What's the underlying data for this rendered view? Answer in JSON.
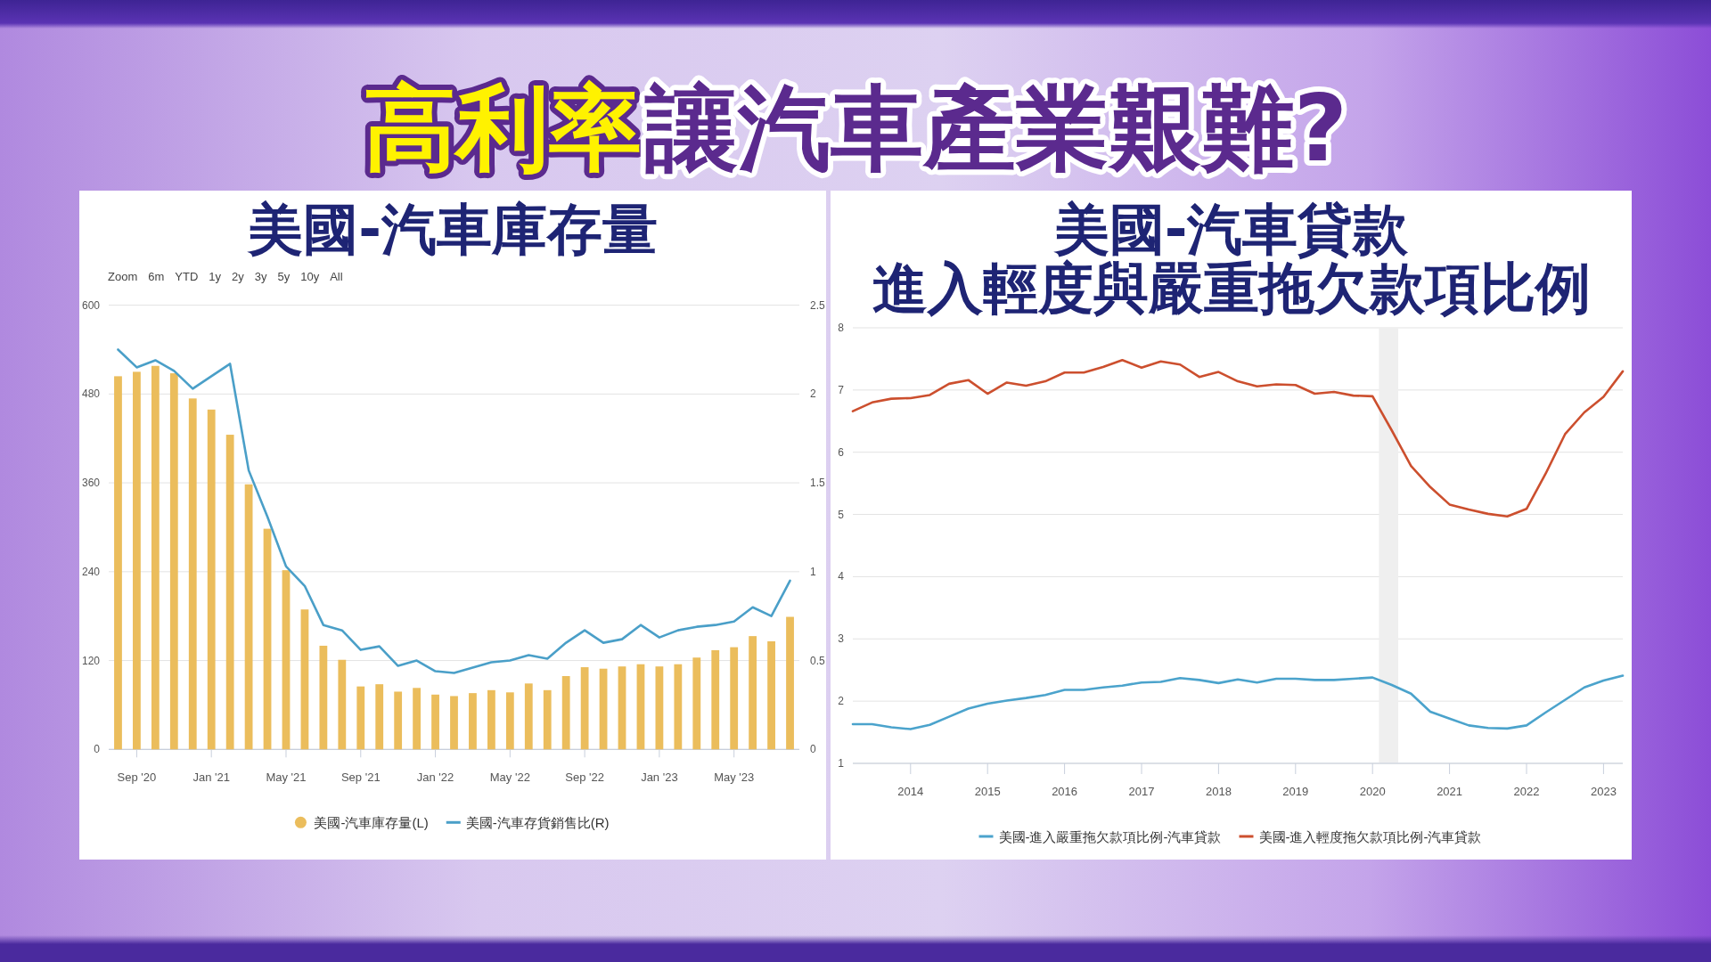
{
  "chart_data": [
    {
      "type": "other",
      "annotations": [
        "高利率",
        "讓汽車產業艱難?"
      ]
    },
    {
      "type": "bar",
      "title": "美國-汽車庫存量",
      "annotations": [
        "Zoom",
        "6m",
        "YTD",
        "1y",
        "2y",
        "3y",
        "5y",
        "10y",
        "All"
      ],
      "categories": [
        null,
        "Sep '20",
        null,
        null,
        null,
        "Jan '21",
        null,
        null,
        null,
        "May '21",
        null,
        null,
        null,
        "Sep '21",
        null,
        null,
        null,
        "Jan '22",
        null,
        null,
        null,
        "May '22",
        null,
        null,
        null,
        "Sep '22",
        null,
        null,
        null,
        "Jan '23",
        null,
        null,
        null,
        "May '23",
        null,
        null,
        null
      ],
      "series": [
        {
          "name": "美國-汽車庫存量(L)",
          "color": "#ebbd5c",
          "values": [
            504,
            510,
            518,
            508,
            474,
            459,
            425,
            358,
            298,
            242,
            189,
            140,
            121,
            85,
            88,
            78,
            83,
            74,
            72,
            76,
            80,
            77,
            89,
            80,
            99,
            111,
            109,
            112,
            115,
            112,
            115,
            124,
            134,
            138,
            153,
            146,
            179
          ]
        },
        {
          "name": "美國-汽車存貨銷售比(R)",
          "type": "line",
          "axis": "y2",
          "color": "#4a9fc8",
          "values": [
            2.25,
            2.15,
            2.19,
            2.13,
            2.03,
            2.1,
            2.17,
            1.57,
            1.31,
            1.03,
            0.92,
            0.7,
            0.67,
            0.56,
            0.58,
            0.47,
            0.5,
            0.44,
            0.43,
            0.46,
            0.49,
            0.5,
            0.53,
            0.51,
            0.6,
            0.67,
            0.6,
            0.62,
            0.7,
            0.63,
            0.67,
            0.69,
            0.7,
            0.72,
            0.8,
            0.75,
            0.95
          ]
        }
      ],
      "ylim": [
        0,
        600
      ],
      "yticks": [
        0,
        120,
        240,
        360,
        480,
        600
      ],
      "y2lim": [
        0,
        2.5
      ],
      "y2ticks": [
        0,
        0.5,
        1,
        1.5,
        2,
        2.5
      ],
      "grid": "y",
      "legend": "bottom"
    },
    {
      "type": "line",
      "title": "美國-汽車貸款",
      "subtitle": "進入輕度與嚴重拖欠款項比例",
      "x": [
        "2013-04",
        "2013-07",
        "2013-10",
        "2014-01",
        "2014-04",
        "2014-07",
        "2014-10",
        "2015-01",
        "2015-04",
        "2015-07",
        "2015-10",
        "2016-01",
        "2016-04",
        "2016-07",
        "2016-10",
        "2017-01",
        "2017-04",
        "2017-07",
        "2017-10",
        "2018-01",
        "2018-04",
        "2018-07",
        "2018-10",
        "2019-01",
        "2019-04",
        "2019-07",
        "2019-10",
        "2020-01",
        "2020-04",
        "2020-07",
        "2020-10",
        "2021-01",
        "2021-04",
        "2021-07",
        "2021-10",
        "2022-01",
        "2022-04",
        "2022-07",
        "2022-10",
        "2023-01",
        "2023-04"
      ],
      "series": [
        {
          "name": "美國-進入嚴重拖欠款項比例-汽車貸款",
          "color": "#4ba3cc",
          "values": [
            1.63,
            1.63,
            1.58,
            1.55,
            1.62,
            1.75,
            1.88,
            1.96,
            2.01,
            2.05,
            2.1,
            2.18,
            2.18,
            2.22,
            2.25,
            2.3,
            2.31,
            2.37,
            2.34,
            2.29,
            2.35,
            2.3,
            2.36,
            2.36,
            2.34,
            2.34,
            2.36,
            2.38,
            2.26,
            2.12,
            1.83,
            1.72,
            1.61,
            1.57,
            1.56,
            1.61,
            1.82,
            2.02,
            2.22,
            2.33,
            2.41
          ]
        },
        {
          "name": "美國-進入輕度拖欠款項比例-汽車貸款",
          "color": "#cc4f2e",
          "values": [
            6.66,
            6.8,
            6.86,
            6.87,
            6.92,
            7.1,
            7.16,
            6.94,
            7.12,
            7.07,
            7.14,
            7.28,
            7.28,
            7.37,
            7.48,
            7.36,
            7.46,
            7.41,
            7.21,
            7.29,
            7.14,
            7.06,
            7.09,
            7.08,
            6.94,
            6.97,
            6.91,
            6.9,
            6.35,
            5.78,
            5.44,
            5.16,
            5.08,
            5.01,
            4.97,
            5.09,
            5.66,
            6.29,
            6.64,
            6.89,
            7.3
          ]
        }
      ],
      "xlim": [
        "2013-04",
        "2023-04"
      ],
      "xticks": [
        "2014",
        "2015",
        "2016",
        "2017",
        "2018",
        "2019",
        "2020",
        "2021",
        "2022",
        "2023"
      ],
      "ylim": [
        1,
        8
      ],
      "yticks": [
        1,
        2,
        3,
        4,
        5,
        6,
        7,
        8
      ],
      "grid": "y",
      "legend": "bottom",
      "bands": [
        {
          "axis": "x",
          "from": "2020-02",
          "to": "2020-05",
          "color": "#efefef"
        }
      ]
    }
  ]
}
